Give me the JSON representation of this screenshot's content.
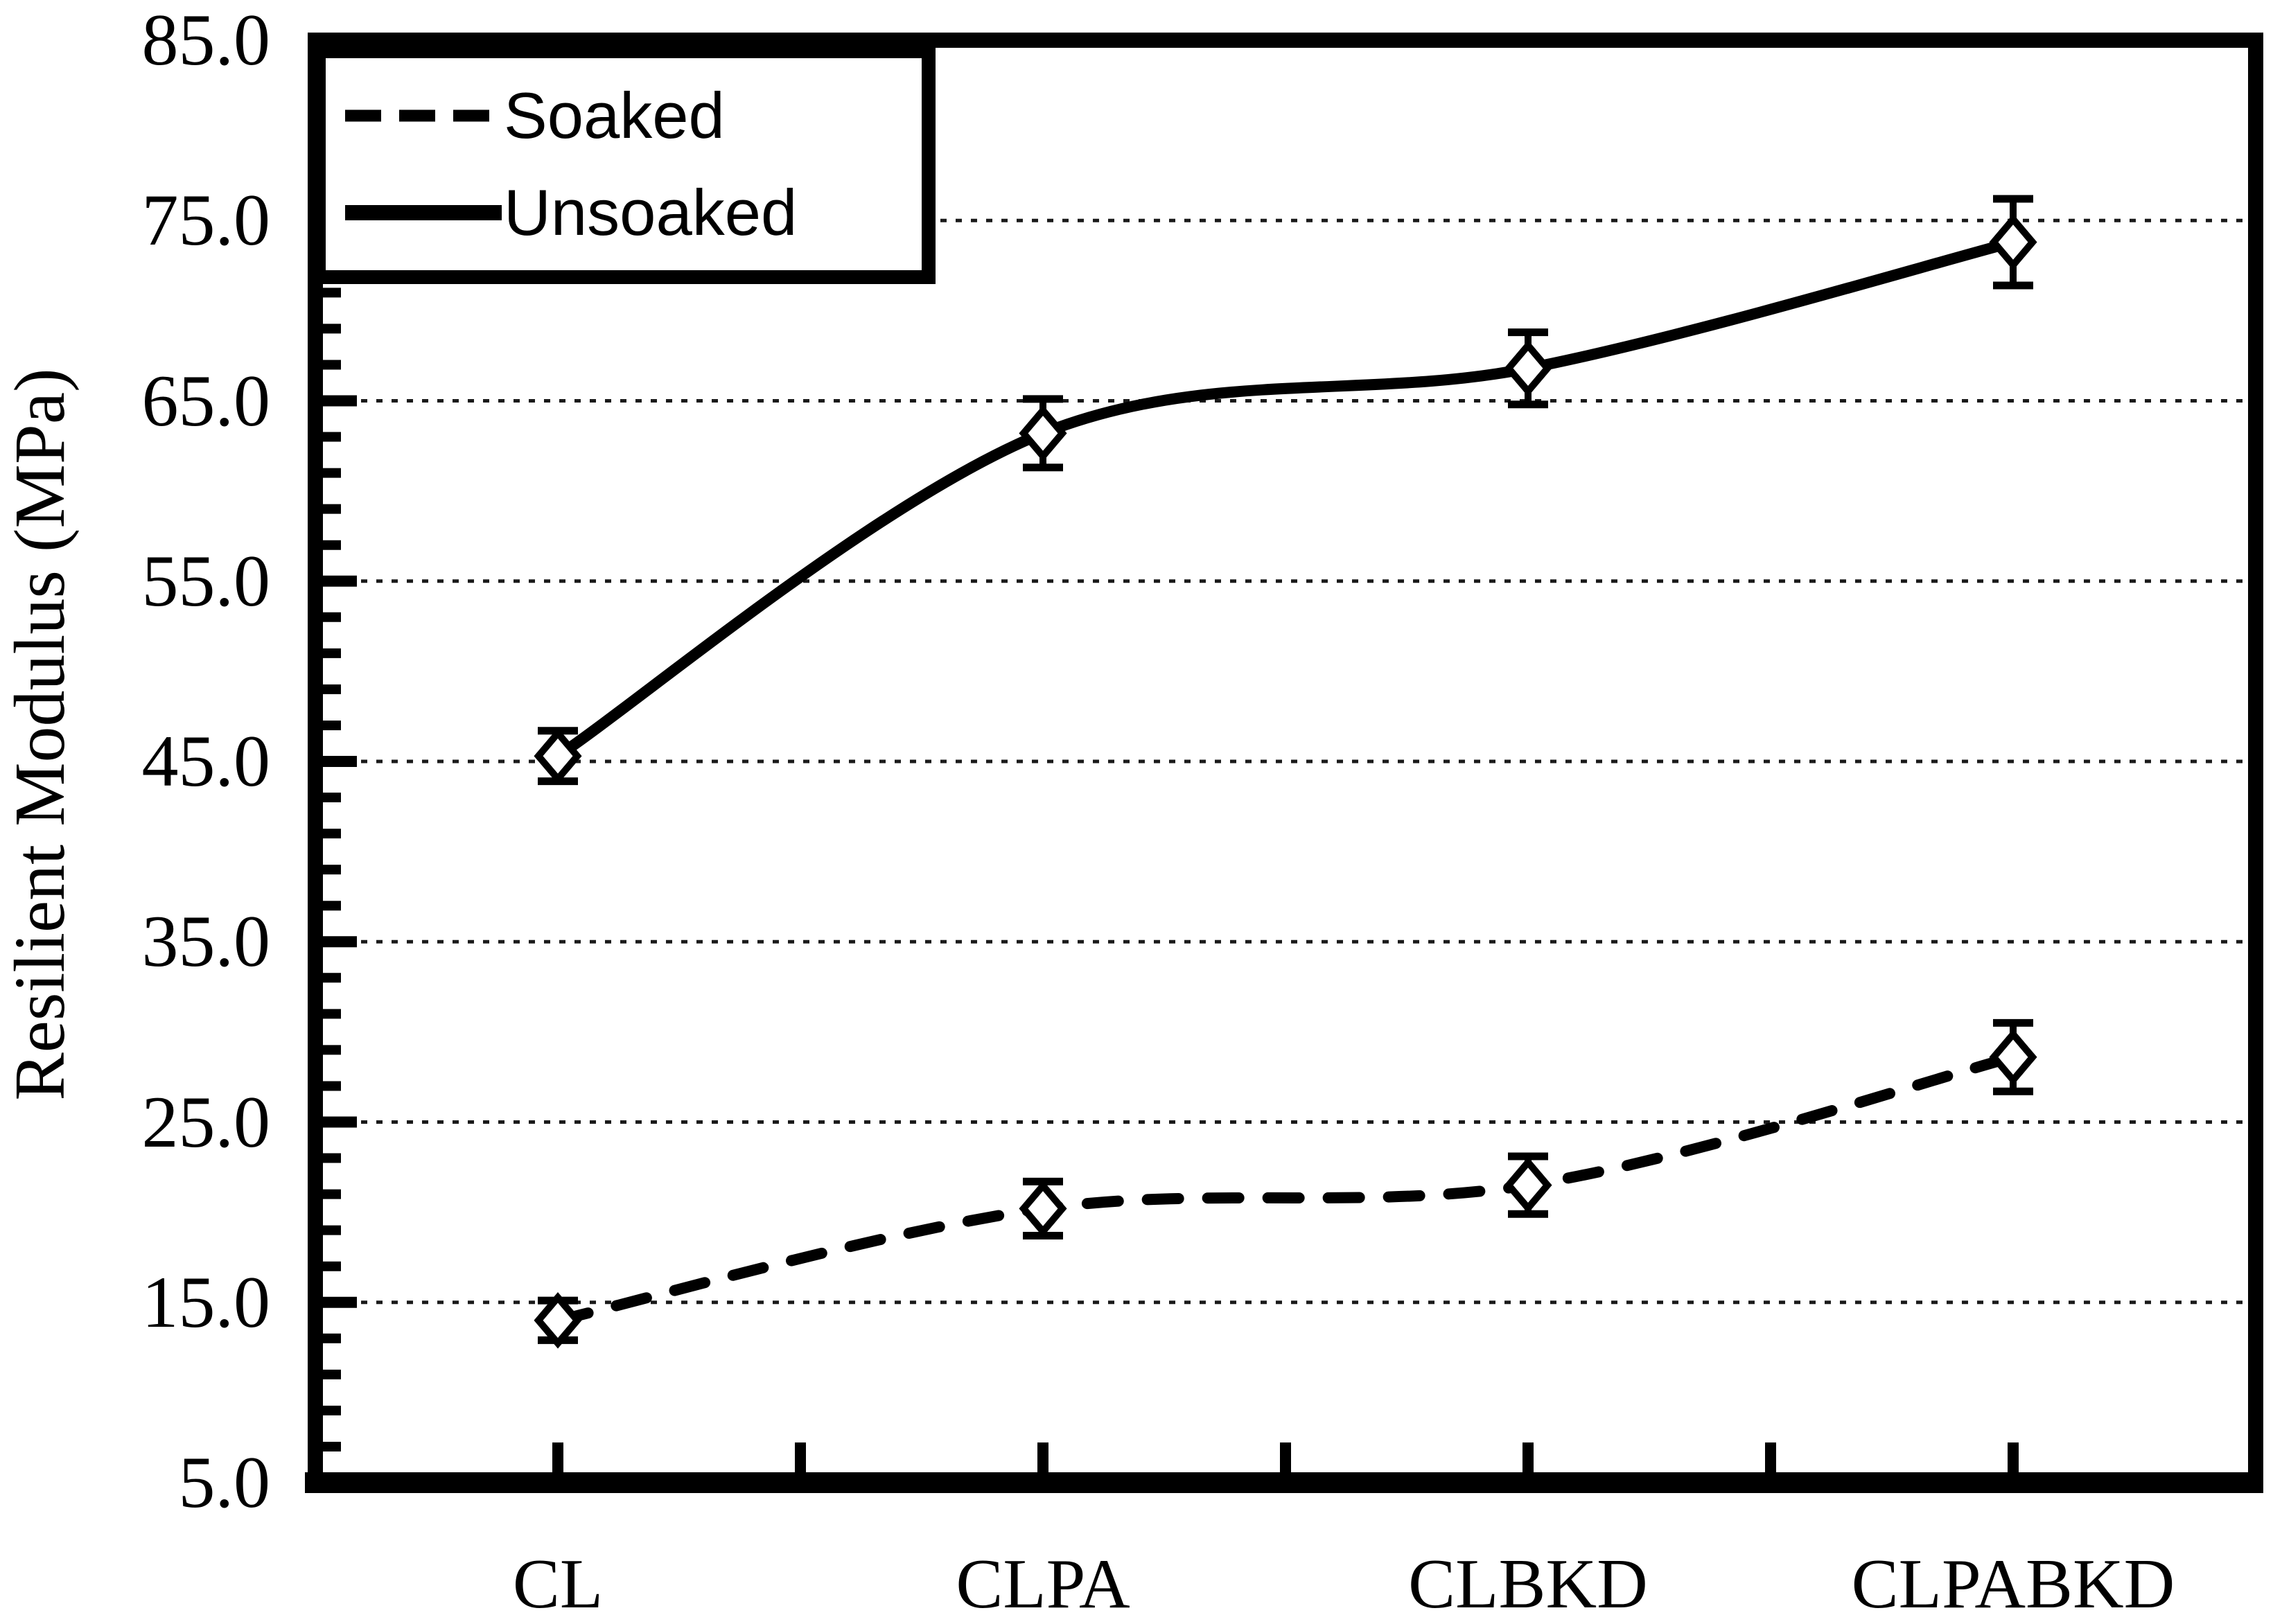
{
  "window": {
    "background": "#ffffff"
  },
  "colors": {
    "ink": "#000000",
    "grid": "#1a1a1a",
    "marker_fill": "#ffffff",
    "background": "#ffffff"
  },
  "legend": {
    "position": "top-left",
    "items": [
      {
        "label": "Soaked",
        "line_style": "dashed"
      },
      {
        "label": "Unsoaked",
        "line_style": "solid"
      }
    ]
  },
  "chart_data": {
    "type": "line",
    "title": "",
    "categories": [
      "CL",
      "CLPA",
      "CLBKD",
      "CLPABKD"
    ],
    "series": [
      {
        "name": "Soaked",
        "line_style": "dashed",
        "marker": "open-diamond",
        "values": [
          14.0,
          20.2,
          21.5,
          28.6
        ],
        "error_bars": [
          1.1,
          1.5,
          1.6,
          1.9
        ]
      },
      {
        "name": "Unsoaked",
        "line_style": "solid",
        "marker": "open-diamond",
        "values": [
          45.3,
          63.2,
          66.8,
          73.8
        ],
        "error_bars": [
          1.4,
          1.9,
          2.0,
          2.4
        ]
      }
    ],
    "xlabel": "",
    "ylabel": "Resilient Modulus (MPa)",
    "ylim": [
      5.0,
      85.0
    ],
    "ytick_step": 10,
    "ytick_minor_step": 2,
    "ytick_labels": [
      "85.0",
      "75.0",
      "65.0",
      "55.0",
      "45.0",
      "35.0",
      "25.0",
      "15.0",
      "5.0"
    ],
    "grid": "horizontal dotted lines at major ticks",
    "legend_position": "top-left",
    "smooth_lines": true
  }
}
